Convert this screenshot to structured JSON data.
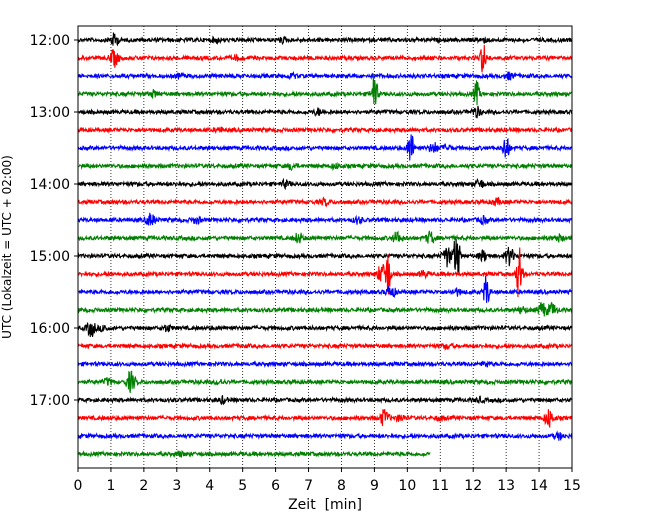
{
  "chart_data": {
    "type": "line",
    "title": "",
    "xlabel": "Zeit  [min]",
    "ylabel": "UTC (Lokalzeit = UTC + 02:00)",
    "xlim": [
      0,
      15
    ],
    "x_ticks": [
      "0",
      "1",
      "2",
      "3",
      "4",
      "5",
      "6",
      "7",
      "8",
      "9",
      "10",
      "11",
      "12",
      "13",
      "14",
      "15"
    ],
    "y_ticks": [
      "12:00",
      "13:00",
      "14:00",
      "15:00",
      "16:00",
      "17:00"
    ],
    "grid": "vertical dotted",
    "trace_colors": [
      "#000000",
      "#ff0000",
      "#0000ff",
      "#008000"
    ],
    "traces": [
      {
        "start": "12:00",
        "end_min": 15,
        "events": [
          [
            1.1,
            6
          ],
          [
            4.2,
            2
          ],
          [
            12.3,
            2
          ],
          [
            6.2,
            2
          ]
        ]
      },
      {
        "start": "12:15",
        "end_min": 15,
        "events": [
          [
            1.1,
            8
          ],
          [
            12.3,
            16
          ],
          [
            4.8,
            2
          ]
        ]
      },
      {
        "start": "12:30",
        "end_min": 15,
        "events": [
          [
            13.1,
            3
          ],
          [
            6.5,
            2
          ],
          [
            3.1,
            2
          ]
        ]
      },
      {
        "start": "12:45",
        "end_min": 15,
        "events": [
          [
            9.0,
            22
          ],
          [
            12.1,
            12
          ],
          [
            2.3,
            3
          ]
        ]
      },
      {
        "start": "13:00",
        "end_min": 15,
        "events": [
          [
            12.1,
            5
          ],
          [
            7.3,
            3
          ]
        ]
      },
      {
        "start": "13:15",
        "end_min": 15,
        "events": [
          [
            4.3,
            2
          ]
        ]
      },
      {
        "start": "13:30",
        "end_min": 15,
        "events": [
          [
            10.1,
            18
          ],
          [
            13.0,
            15
          ],
          [
            10.8,
            5
          ],
          [
            11.2,
            3
          ]
        ]
      },
      {
        "start": "13:45",
        "end_min": 15,
        "events": [
          [
            6.5,
            3
          ],
          [
            7.8,
            2
          ]
        ]
      },
      {
        "start": "14:00",
        "end_min": 15,
        "events": [
          [
            12.2,
            4
          ],
          [
            6.3,
            3
          ]
        ]
      },
      {
        "start": "14:15",
        "end_min": 15,
        "events": [
          [
            7.5,
            3
          ],
          [
            12.7,
            3
          ]
        ]
      },
      {
        "start": "14:30",
        "end_min": 15,
        "events": [
          [
            2.2,
            6
          ],
          [
            3.6,
            3
          ],
          [
            8.5,
            3
          ],
          [
            12.3,
            3
          ]
        ]
      },
      {
        "start": "14:45",
        "end_min": 15,
        "events": [
          [
            6.7,
            5
          ],
          [
            9.7,
            6
          ],
          [
            10.7,
            6
          ],
          [
            14.6,
            3
          ]
        ]
      },
      {
        "start": "15:00",
        "end_min": 15,
        "events": [
          [
            11.5,
            28
          ],
          [
            11.2,
            10
          ],
          [
            13.1,
            9
          ],
          [
            12.3,
            5
          ]
        ]
      },
      {
        "start": "15:15",
        "end_min": 15,
        "events": [
          [
            9.4,
            24
          ],
          [
            13.4,
            28
          ],
          [
            9.2,
            8
          ],
          [
            10.5,
            3
          ]
        ]
      },
      {
        "start": "15:30",
        "end_min": 15,
        "events": [
          [
            12.4,
            16
          ],
          [
            9.5,
            6
          ],
          [
            11.5,
            3
          ]
        ]
      },
      {
        "start": "15:45",
        "end_min": 15,
        "events": [
          [
            14.1,
            7
          ],
          [
            14.4,
            6
          ],
          [
            13.5,
            3
          ]
        ]
      },
      {
        "start": "16:00",
        "end_min": 15,
        "events": [
          [
            0.4,
            8
          ],
          [
            2.7,
            3
          ],
          [
            0.8,
            3
          ]
        ]
      },
      {
        "start": "16:15",
        "end_min": 15,
        "events": [
          [
            11.2,
            2
          ]
        ]
      },
      {
        "start": "16:30",
        "end_min": 15,
        "events": [
          [
            12.4,
            2
          ]
        ]
      },
      {
        "start": "16:45",
        "end_min": 15,
        "events": [
          [
            1.6,
            10
          ],
          [
            0.9,
            3
          ],
          [
            4.3,
            2
          ]
        ]
      },
      {
        "start": "17:00",
        "end_min": 15,
        "events": [
          [
            4.4,
            3
          ],
          [
            12.2,
            2
          ]
        ]
      },
      {
        "start": "17:15",
        "end_min": 15,
        "events": [
          [
            9.3,
            8
          ],
          [
            9.8,
            3
          ],
          [
            14.3,
            9
          ],
          [
            11.0,
            2
          ]
        ]
      },
      {
        "start": "17:30",
        "end_min": 15,
        "events": [
          [
            14.6,
            3
          ]
        ]
      },
      {
        "start": "17:45",
        "end_min": 10.7,
        "events": [
          [
            3.1,
            2
          ]
        ]
      }
    ]
  }
}
